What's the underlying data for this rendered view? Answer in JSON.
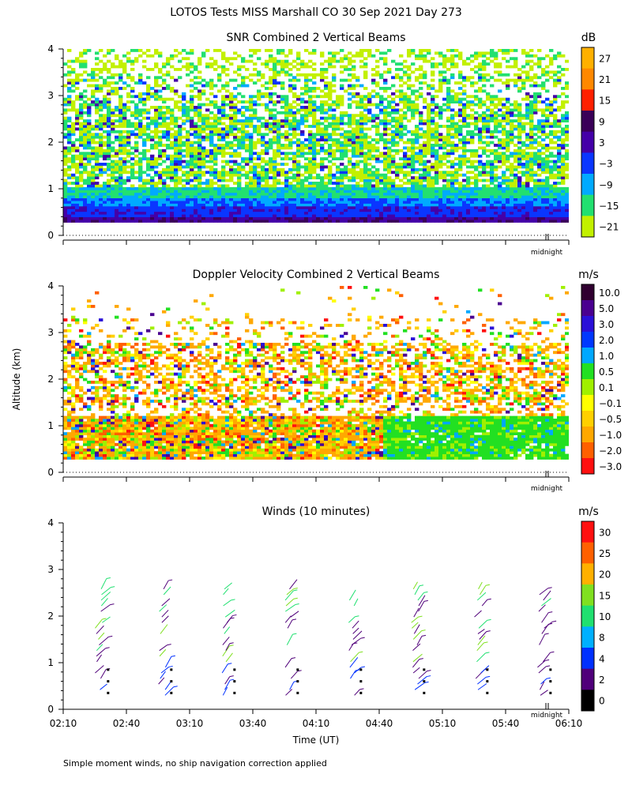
{
  "page": {
    "title": "LOTOS Tests MISS Marshall CO  30 Sep 2021 Day 273",
    "y_axis_label": "Altitude (km)",
    "x_axis_label": "Time (UT)",
    "midnight_label": "midnight",
    "footnote": "Simple moment winds, no ship navigation correction applied"
  },
  "chart_data": [
    {
      "type": "heatmap",
      "title": "SNR Combined 2 Vertical Beams",
      "unit": "dB",
      "ylim": [
        0,
        4
      ],
      "yticks": [
        "0",
        "1",
        "2",
        "3",
        "4"
      ],
      "colorbar_labels": [
        "27",
        "21",
        "15",
        "9",
        "3",
        "−3",
        "−9",
        "−15",
        "−21"
      ],
      "colorbar_colors": [
        "#ffb000",
        "#ff8800",
        "#ff2000",
        "#3a0058",
        "#4400a8",
        "#0a36ff",
        "#00aaff",
        "#22e070",
        "#c2f000"
      ],
      "profile": [
        {
          "alt_km": 0.3,
          "snr_db": 6
        },
        {
          "alt_km": 0.5,
          "snr_db": 0
        },
        {
          "alt_km": 0.7,
          "snr_db": -6
        },
        {
          "alt_km": 1.0,
          "snr_db": -12
        },
        {
          "alt_km": 1.5,
          "snr_db": -15
        },
        {
          "alt_km": 2.0,
          "snr_db": -15
        },
        {
          "alt_km": 2.5,
          "snr_db": -18
        },
        {
          "alt_km": 3.0,
          "snr_db": -18
        },
        {
          "alt_km": 3.5,
          "snr_db": -21
        },
        {
          "alt_km": 4.0,
          "snr_db": -21
        }
      ]
    },
    {
      "type": "heatmap",
      "title": "Doppler Velocity Combined 2 Vertical Beams",
      "unit": "m/s",
      "ylim": [
        0,
        4
      ],
      "yticks": [
        "0",
        "1",
        "2",
        "3",
        "4"
      ],
      "colorbar_labels": [
        "10.0",
        "5.0",
        "3.0",
        "2.0",
        "1.0",
        "0.5",
        "0.1",
        "−0.1",
        "−0.5",
        "−1.0",
        "−2.0",
        "−3.0"
      ],
      "colorbar_colors": [
        "#300030",
        "#4a0090",
        "#2a10d8",
        "#0038ff",
        "#00a8ff",
        "#22e022",
        "#a0f000",
        "#ffff00",
        "#ffd000",
        "#ffa800",
        "#ff6000",
        "#ff1010"
      ]
    },
    {
      "type": "scatter",
      "title": "Winds (10 minutes)",
      "unit": "m/s",
      "ylim": [
        0,
        4
      ],
      "yticks": [
        "0",
        "1",
        "2",
        "3",
        "4"
      ],
      "xticks": [
        "02:10",
        "02:40",
        "03:10",
        "03:40",
        "04:10",
        "04:40",
        "05:10",
        "05:40",
        "06:10"
      ],
      "colorbar_labels": [
        "30",
        "25",
        "20",
        "15",
        "10",
        "8",
        "4",
        "2",
        "0"
      ],
      "colorbar_colors": [
        "#ff1010",
        "#ff6000",
        "#ffb000",
        "#80e020",
        "#20e070",
        "#00b0ff",
        "#0030ff",
        "#50007a",
        "#000000"
      ],
      "profile_times": [
        "02:30",
        "03:00",
        "03:30",
        "04:00",
        "04:30",
        "05:00",
        "05:30",
        "06:00"
      ]
    }
  ]
}
